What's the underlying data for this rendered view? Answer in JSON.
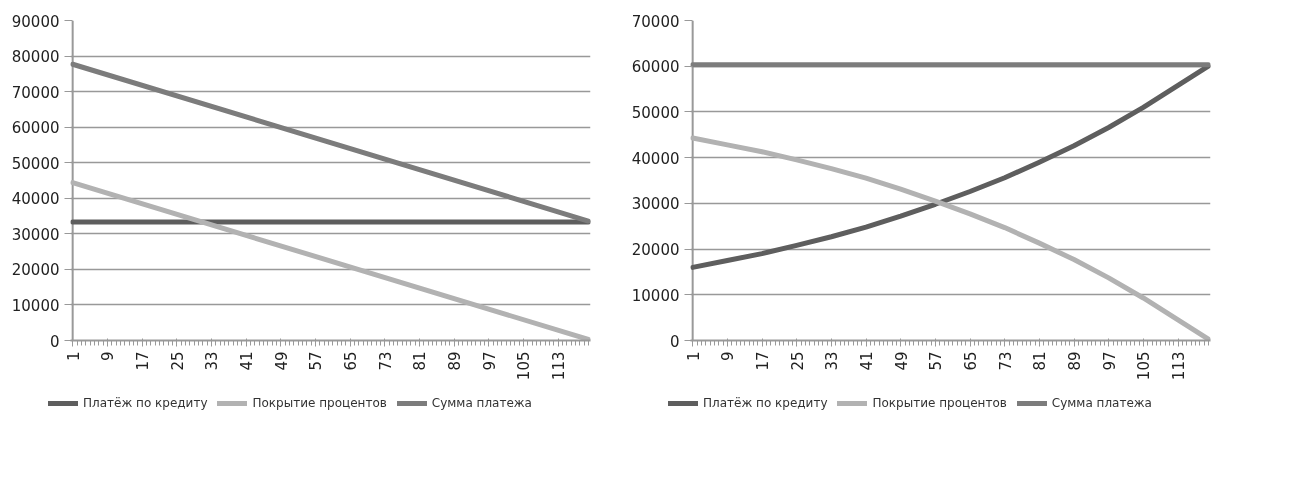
{
  "chart_data": [
    {
      "type": "line",
      "x": [
        1,
        120
      ],
      "xlim": [
        0.5,
        120.5
      ],
      "xticks": [
        1,
        9,
        17,
        25,
        33,
        41,
        49,
        57,
        65,
        73,
        81,
        89,
        97,
        105,
        113
      ],
      "ylim": [
        0,
        90000
      ],
      "yticks": [
        0,
        10000,
        20000,
        30000,
        40000,
        50000,
        60000,
        70000,
        80000,
        90000
      ],
      "grid": "y",
      "legend": "bottom",
      "line_style": "solid",
      "series": [
        {
          "name": "Платёж по кредиту",
          "color": "#5e5e5e",
          "values": [
            33300,
            33300
          ]
        },
        {
          "name": "Покрытие процентов",
          "color": "#b2b2b2",
          "values": [
            44400,
            300
          ]
        },
        {
          "name": "Сумма платежа",
          "color": "#7c7c7c",
          "values": [
            77700,
            33600
          ]
        }
      ]
    },
    {
      "type": "line",
      "x": [
        1,
        9,
        17,
        25,
        33,
        41,
        49,
        57,
        65,
        73,
        81,
        89,
        97,
        105,
        113,
        120
      ],
      "xlim": [
        0.5,
        120.5
      ],
      "xticks": [
        1,
        9,
        17,
        25,
        33,
        41,
        49,
        57,
        65,
        73,
        81,
        89,
        97,
        105,
        113
      ],
      "ylim": [
        0,
        70000
      ],
      "yticks": [
        0,
        10000,
        20000,
        30000,
        40000,
        50000,
        60000,
        70000
      ],
      "grid": "y",
      "legend": "bottom",
      "line_style": "solid",
      "series": [
        {
          "name": "Платёж по кредиту",
          "color": "#5e5e5e",
          "values": [
            16000,
            17500,
            19000,
            20800,
            22700,
            24800,
            27200,
            29800,
            32600,
            35600,
            39000,
            42600,
            46600,
            51000,
            55800,
            60000
          ]
        },
        {
          "name": "Покрытие процентов",
          "color": "#b2b2b2",
          "values": [
            44300,
            42800,
            41300,
            39500,
            37600,
            35500,
            33100,
            30500,
            27700,
            24700,
            21300,
            17700,
            13700,
            9300,
            4500,
            300
          ]
        },
        {
          "name": "Сумма платежа",
          "color": "#7c7c7c",
          "values": [
            60300,
            60300,
            60300,
            60300,
            60300,
            60300,
            60300,
            60300,
            60300,
            60300,
            60300,
            60300,
            60300,
            60300,
            60300,
            60300
          ]
        }
      ]
    }
  ]
}
